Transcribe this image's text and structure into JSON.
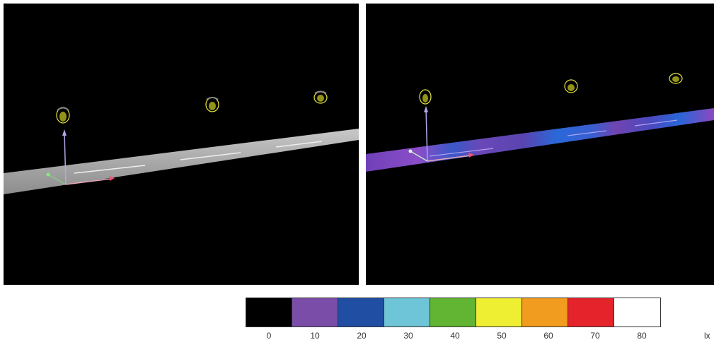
{
  "legend": {
    "unit": "lx",
    "items": [
      {
        "label": "0",
        "color": "#000000"
      },
      {
        "label": "10",
        "color": "#7a4ea8"
      },
      {
        "label": "20",
        "color": "#1f4ea3"
      },
      {
        "label": "30",
        "color": "#6fc5d8"
      },
      {
        "label": "40",
        "color": "#61b533"
      },
      {
        "label": "50",
        "color": "#eeee33"
      },
      {
        "label": "60",
        "color": "#f19c1f"
      },
      {
        "label": "70",
        "color": "#e5232a"
      },
      {
        "label": "80",
        "color": "#ffffff"
      }
    ]
  },
  "scenes": {
    "left": {
      "road_style": "plain-gray"
    },
    "right": {
      "road_style": "illuminance-heatmap"
    }
  }
}
